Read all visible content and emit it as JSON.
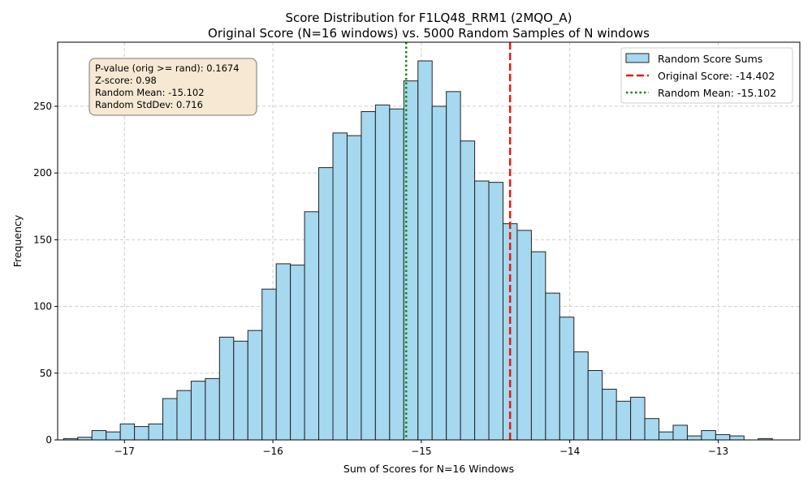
{
  "chart_data": {
    "type": "bar",
    "title": "Score Distribution for F1LQ48_RRM1 (2MQO_A)",
    "subtitle": "Original Score (N=16 windows) vs. 5000 Random Samples of N windows",
    "xlabel": "Sum of Scores for N=16 Windows",
    "ylabel": "Frequency",
    "xlim": [
      -17.45,
      -12.45
    ],
    "ylim": [
      0,
      298
    ],
    "x_ticks": [
      -17,
      -16,
      -15,
      -14,
      -13
    ],
    "x_tick_labels": [
      "−17",
      "−16",
      "−15",
      "−14",
      "−13"
    ],
    "y_ticks": [
      0,
      50,
      100,
      150,
      200,
      250
    ],
    "y_tick_labels": [
      "0",
      "50",
      "100",
      "150",
      "200",
      "250"
    ],
    "grid": true,
    "legend_position": "top-right",
    "bin_width": 0.0955,
    "bins": [
      {
        "start": -17.41,
        "value": 1
      },
      {
        "start": -17.3145,
        "value": 2
      },
      {
        "start": -17.219,
        "value": 7
      },
      {
        "start": -17.1235,
        "value": 6
      },
      {
        "start": -17.028,
        "value": 12
      },
      {
        "start": -16.9325,
        "value": 10
      },
      {
        "start": -16.837,
        "value": 12
      },
      {
        "start": -16.7415,
        "value": 31
      },
      {
        "start": -16.646,
        "value": 37
      },
      {
        "start": -16.5505,
        "value": 44
      },
      {
        "start": -16.455,
        "value": 46
      },
      {
        "start": -16.3595,
        "value": 77
      },
      {
        "start": -16.264,
        "value": 74
      },
      {
        "start": -16.1685,
        "value": 82
      },
      {
        "start": -16.073,
        "value": 113
      },
      {
        "start": -15.9775,
        "value": 132
      },
      {
        "start": -15.882,
        "value": 131
      },
      {
        "start": -15.7865,
        "value": 171
      },
      {
        "start": -15.691,
        "value": 204
      },
      {
        "start": -15.5955,
        "value": 230
      },
      {
        "start": -15.5,
        "value": 228
      },
      {
        "start": -15.4045,
        "value": 246
      },
      {
        "start": -15.309,
        "value": 251
      },
      {
        "start": -15.2135,
        "value": 248
      },
      {
        "start": -15.118,
        "value": 269
      },
      {
        "start": -15.0225,
        "value": 284
      },
      {
        "start": -14.927,
        "value": 250
      },
      {
        "start": -14.8315,
        "value": 261
      },
      {
        "start": -14.736,
        "value": 224
      },
      {
        "start": -14.6405,
        "value": 194
      },
      {
        "start": -14.545,
        "value": 193
      },
      {
        "start": -14.4495,
        "value": 162
      },
      {
        "start": -14.354,
        "value": 157
      },
      {
        "start": -14.2585,
        "value": 141
      },
      {
        "start": -14.163,
        "value": 110
      },
      {
        "start": -14.0675,
        "value": 92
      },
      {
        "start": -13.972,
        "value": 66
      },
      {
        "start": -13.8765,
        "value": 52
      },
      {
        "start": -13.781,
        "value": 38
      },
      {
        "start": -13.6855,
        "value": 29
      },
      {
        "start": -13.59,
        "value": 32
      },
      {
        "start": -13.4945,
        "value": 16
      },
      {
        "start": -13.399,
        "value": 6
      },
      {
        "start": -13.3035,
        "value": 11
      },
      {
        "start": -13.208,
        "value": 3
      },
      {
        "start": -13.1125,
        "value": 7
      },
      {
        "start": -13.017,
        "value": 4
      },
      {
        "start": -12.9215,
        "value": 3
      },
      {
        "start": -12.826,
        "value": 0
      },
      {
        "start": -12.7305,
        "value": 1
      }
    ],
    "reference_lines": [
      {
        "label": "Original Score: -14.402",
        "x": -14.402,
        "color": "#e8190f",
        "style": "dashed"
      },
      {
        "label": "Random Mean: -15.102",
        "x": -15.102,
        "color": "#0f8a0f",
        "style": "dotted"
      }
    ],
    "series": [
      {
        "name": "Random Score Sums",
        "color": "#87ceeb"
      }
    ],
    "stats_box": [
      "P-value (orig >= rand): 0.1674",
      "Z-score: 0.98",
      "Random Mean: -15.102",
      "Random StdDev: 0.716"
    ]
  },
  "colors": {
    "bar_fill": "#a6d8ef",
    "bar_edge": "#222222",
    "grid": "#cccccc",
    "stats_fill": "#f6e8d2",
    "stats_edge": "#777777"
  }
}
